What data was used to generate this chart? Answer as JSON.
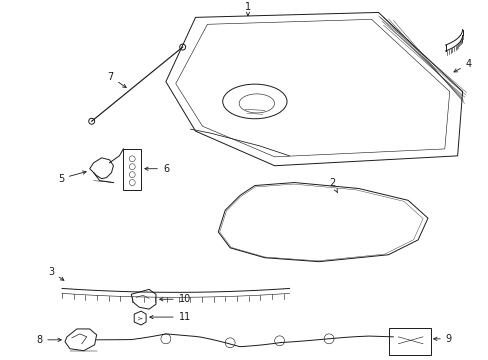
{
  "background_color": "#ffffff",
  "line_color": "#1a1a1a",
  "figsize": [
    4.89,
    3.6
  ],
  "dpi": 100
}
